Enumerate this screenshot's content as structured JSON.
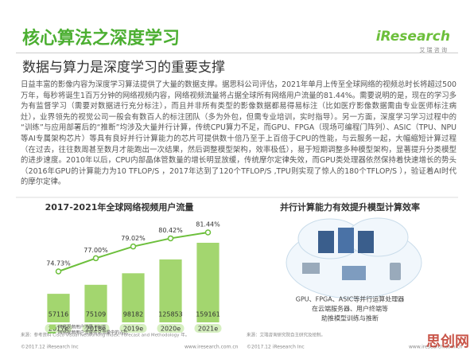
{
  "header": {
    "title": "核心算法之深度学习",
    "logo": "iResearch",
    "logo_sub": "艾 瑞 咨 询"
  },
  "subtitle": "数据与算力是深度学习的重要支撑",
  "body": "日益丰富的影像内容为深度学习算法提供了大量的数据支撑。据思科公司评估，2021年单月上传至全球网络的视频总时长将超过500万年，每秒将诞生1百万分钟的网络视频内容，网络视频流量将占据全球所有网络用户流量的81.44%。需要说明的是，现在的学习多为有监督学习（需要对数据进行充分标注），而且并非所有类型的影像数据都易得易标注（比如医疗影像数据需由专业医师标注病灶），业界领先的视觉公司一般会有数百人的标注团队（多为外包，但需专业培训，实时指导）。另一方面，深度学习学习过程中的“训练”与应用部署后的“推断”均涉及大量并行计算，传统CPU算力不足，而GPU、FPGA（现场可编程门阵列）、ASIC（TPU、NPU等AI专属架构芯片）等具有良好并行计算能力的芯片可提供数十倍乃至于上百倍于CPU的性能，与云服务一起，大幅缩短计算过程（在过去，往往数周甚至数月才能跑出一次结果，然后调整模型架构，效率极低），易于短期调整多种模型架构，显著提升分类模型的进步速度。2010年以后，CPU内部晶体管数量的增长明显放缓，传统摩尔定律失效，而GPU类处理器依然保持着快速增长的势头（2016年GPU的计算能力为10 TFLOP/S ，2017年达到了120个TFLOP/S ,TPU则实现了惊人的180个TFLOP/S ），验证着AI时代的摩尔定律。",
  "chart_data": {
    "type": "bar",
    "title": "2017-2021年全球网络视频用户流量",
    "categories": [
      "2017e",
      "2018e",
      "2019e",
      "2020e",
      "2021e"
    ],
    "series": [
      {
        "name": "网络视频用户流量 PB/月",
        "color": "#a3d66f",
        "values": [
          57116,
          75109,
          98182,
          125853,
          159161
        ]
      },
      {
        "name": "网络视频用户流量在总流量中的占比",
        "type": "line",
        "color": "#6cbf3b",
        "values": [
          74.73,
          77.0,
          79.02,
          80.42,
          81.44
        ],
        "value_labels": [
          "74.73%",
          "77.00%",
          "79.02%",
          "80.42%",
          "81.44%"
        ]
      }
    ],
    "source": "来源：参考资料 Cisco Visual Networking Index: Forecast and Methodology 年。"
  },
  "diagram": {
    "title": "并行计算能力有效提升模型计算效率",
    "caption": [
      "GPU、FPGA、ASIC等并行运算处理器",
      "在云端服务器、用户终端等",
      "助推模型训练与推断"
    ],
    "source": "来源：艾瑞咨询研究院自主研究及绘制。"
  },
  "footer": {
    "left": "©2017.12 iResearch Inc",
    "right": "www.iresearch.com.cn"
  },
  "watermark": "思创网"
}
